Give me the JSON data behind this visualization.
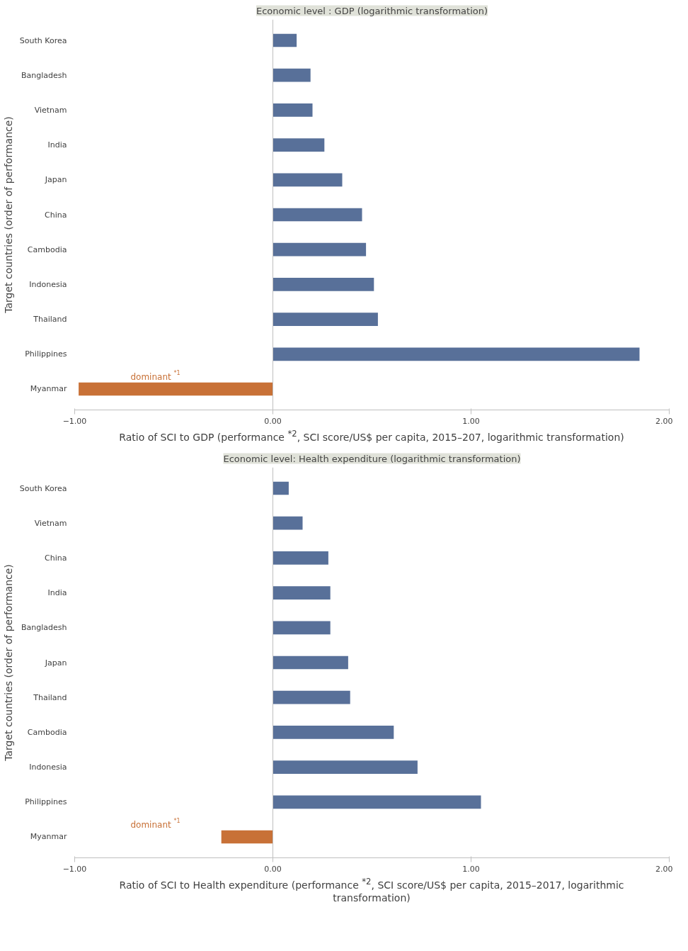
{
  "chart_data": [
    {
      "type": "bar",
      "orientation": "horizontal",
      "title": "Economic level : GDP (logarithmic transformation)",
      "xlabel": "Ratio of SCI to GDP (performance $^{*2}$, SCI score/US$ per capita, 2015–207, logarithmic transformation)",
      "ylabel": "Target countries (order of performance)",
      "categories": [
        "South Korea",
        "Bangladesh",
        "Vietnam",
        "India",
        "Japan",
        "China",
        "Cambodia",
        "Indonesia",
        "Thailand",
        "Philippines",
        "Myanmar"
      ],
      "values": [
        0.12,
        0.19,
        0.2,
        0.26,
        0.35,
        0.45,
        0.47,
        0.51,
        0.53,
        1.85,
        -0.98
      ],
      "colors": [
        "#587099",
        "#587099",
        "#587099",
        "#587099",
        "#587099",
        "#587099",
        "#587099",
        "#587099",
        "#587099",
        "#587099",
        "#c87137"
      ],
      "xlim": [
        -1.0,
        2.0
      ],
      "xticks": [
        {
          "value": -1,
          "label": "−1.00"
        },
        {
          "value": 0,
          "label": "0.00"
        },
        {
          "value": 1,
          "label": "1.00"
        },
        {
          "value": 2,
          "label": "2.00"
        }
      ],
      "legend": false,
      "annotations": [
        "dominant $^{*1}$"
      ]
    },
    {
      "type": "bar",
      "orientation": "horizontal",
      "title": "Economic level: Health expenditure (logarithmic transformation)",
      "xlabel": "Ratio of SCI to Health expenditure (performance $^{*2}$, SCI score/US$ per capita, 2015–2017, logarithmic transformation)",
      "ylabel": "Target countries (order of performance)",
      "categories": [
        "South Korea",
        "Vietnam",
        "China",
        "India",
        "Bangladesh",
        "Japan",
        "Thailand",
        "Cambodia",
        "Indonesia",
        "Philippines",
        "Myanmar"
      ],
      "values": [
        0.08,
        0.15,
        0.28,
        0.29,
        0.29,
        0.38,
        0.39,
        0.61,
        0.73,
        1.05,
        -0.26
      ],
      "colors": [
        "#587099",
        "#587099",
        "#587099",
        "#587099",
        "#587099",
        "#587099",
        "#587099",
        "#587099",
        "#587099",
        "#587099",
        "#c87137"
      ],
      "xlim": [
        -1.0,
        2.0
      ],
      "xticks": [
        {
          "value": -1,
          "label": "−1.00"
        },
        {
          "value": 0,
          "label": "0.00"
        },
        {
          "value": 1,
          "label": "1.00"
        },
        {
          "value": 2,
          "label": "2.00"
        }
      ],
      "legend": false,
      "annotations": [
        "dominant $^{*1}$"
      ]
    }
  ]
}
